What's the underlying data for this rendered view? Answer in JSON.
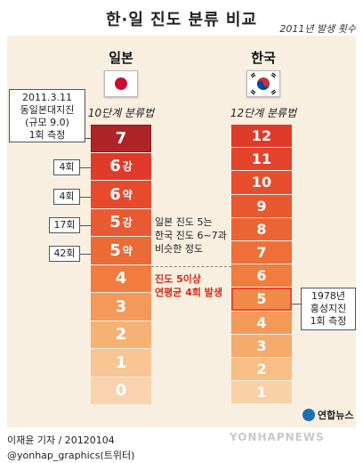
{
  "title": "한·일 진도 분류 비교",
  "note": "2011년 발생 횟수",
  "japan": {
    "name": "일본",
    "method": "10단계 분류법",
    "levels": [
      {
        "num": "7",
        "suffix": ""
      },
      {
        "num": "6",
        "suffix": "강"
      },
      {
        "num": "6",
        "suffix": "약"
      },
      {
        "num": "5",
        "suffix": "강"
      },
      {
        "num": "5",
        "suffix": "약"
      },
      {
        "num": "4",
        "suffix": ""
      },
      {
        "num": "3",
        "suffix": ""
      },
      {
        "num": "2",
        "suffix": ""
      },
      {
        "num": "1",
        "suffix": ""
      },
      {
        "num": "0",
        "suffix": ""
      }
    ],
    "counts": [
      "4회",
      "4회",
      "17회",
      "42회"
    ],
    "callout": [
      "2011.3.11",
      "동일본대지진",
      "(규모 9.0)",
      "1회 측정"
    ]
  },
  "korea": {
    "name": "한국",
    "method": "12단계 분류법",
    "levels": [
      "12",
      "11",
      "10",
      "9",
      "8",
      "7",
      "6",
      "5",
      "4",
      "3",
      "2",
      "1"
    ],
    "callout": [
      "1978년",
      "홍성지진",
      "1회 측정"
    ]
  },
  "middle_note": [
    "일본 진도 5는",
    "한국 진도 6~7과",
    "비슷한 정도"
  ],
  "red_note": [
    "진도 5이상",
    "연평균 4회 발생"
  ],
  "credit": [
    "이재윤 기자 / 20120104",
    "@yonhap_graphics(트위터)"
  ],
  "brand": "연합뉴스",
  "watermark": "YONHAPNEWS",
  "colors": {
    "background": "#f8efe0",
    "japan_top": "#b02427",
    "highlight_red": "#d42a1a",
    "korea_highlight_border": "#e8492c"
  }
}
